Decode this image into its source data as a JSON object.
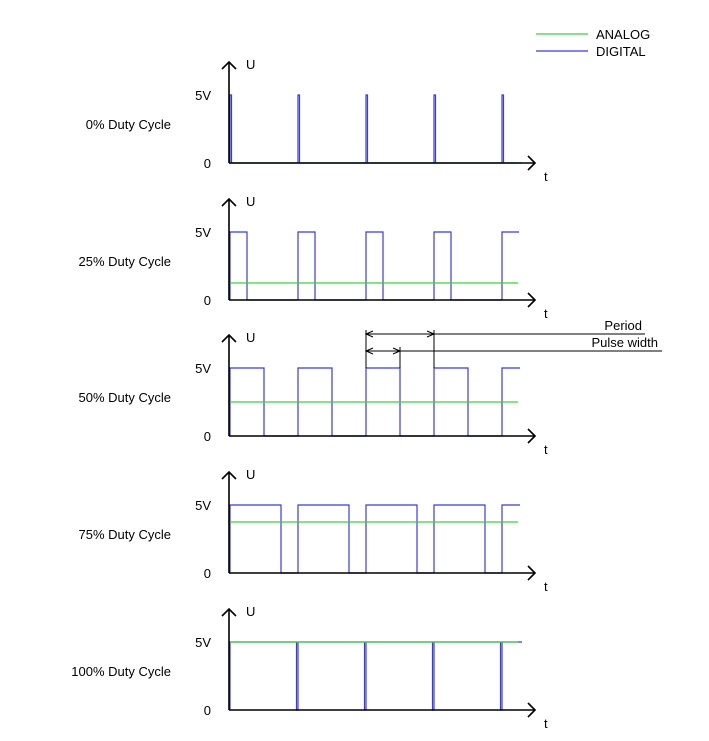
{
  "legend": {
    "analog": "ANALOG",
    "digital": "DIGITAL"
  },
  "colors": {
    "analog": "#3cd23c",
    "digital": "#3b3bd8",
    "axis": "#000000"
  },
  "axis_labels": {
    "y": "U",
    "x": "t",
    "high": "5V",
    "low": "0"
  },
  "annotations": {
    "period": "Period",
    "pulse_width": "Pulse width"
  },
  "panels": [
    {
      "label": "0% Duty Cycle",
      "duty": 0.0
    },
    {
      "label": "25% Duty Cycle",
      "duty": 0.25
    },
    {
      "label": "50% Duty Cycle",
      "duty": 0.5
    },
    {
      "label": "75% Duty Cycle",
      "duty": 0.75
    },
    {
      "label": "100% Duty Cycle",
      "duty": 1.0
    }
  ],
  "periods_shown": 5
}
